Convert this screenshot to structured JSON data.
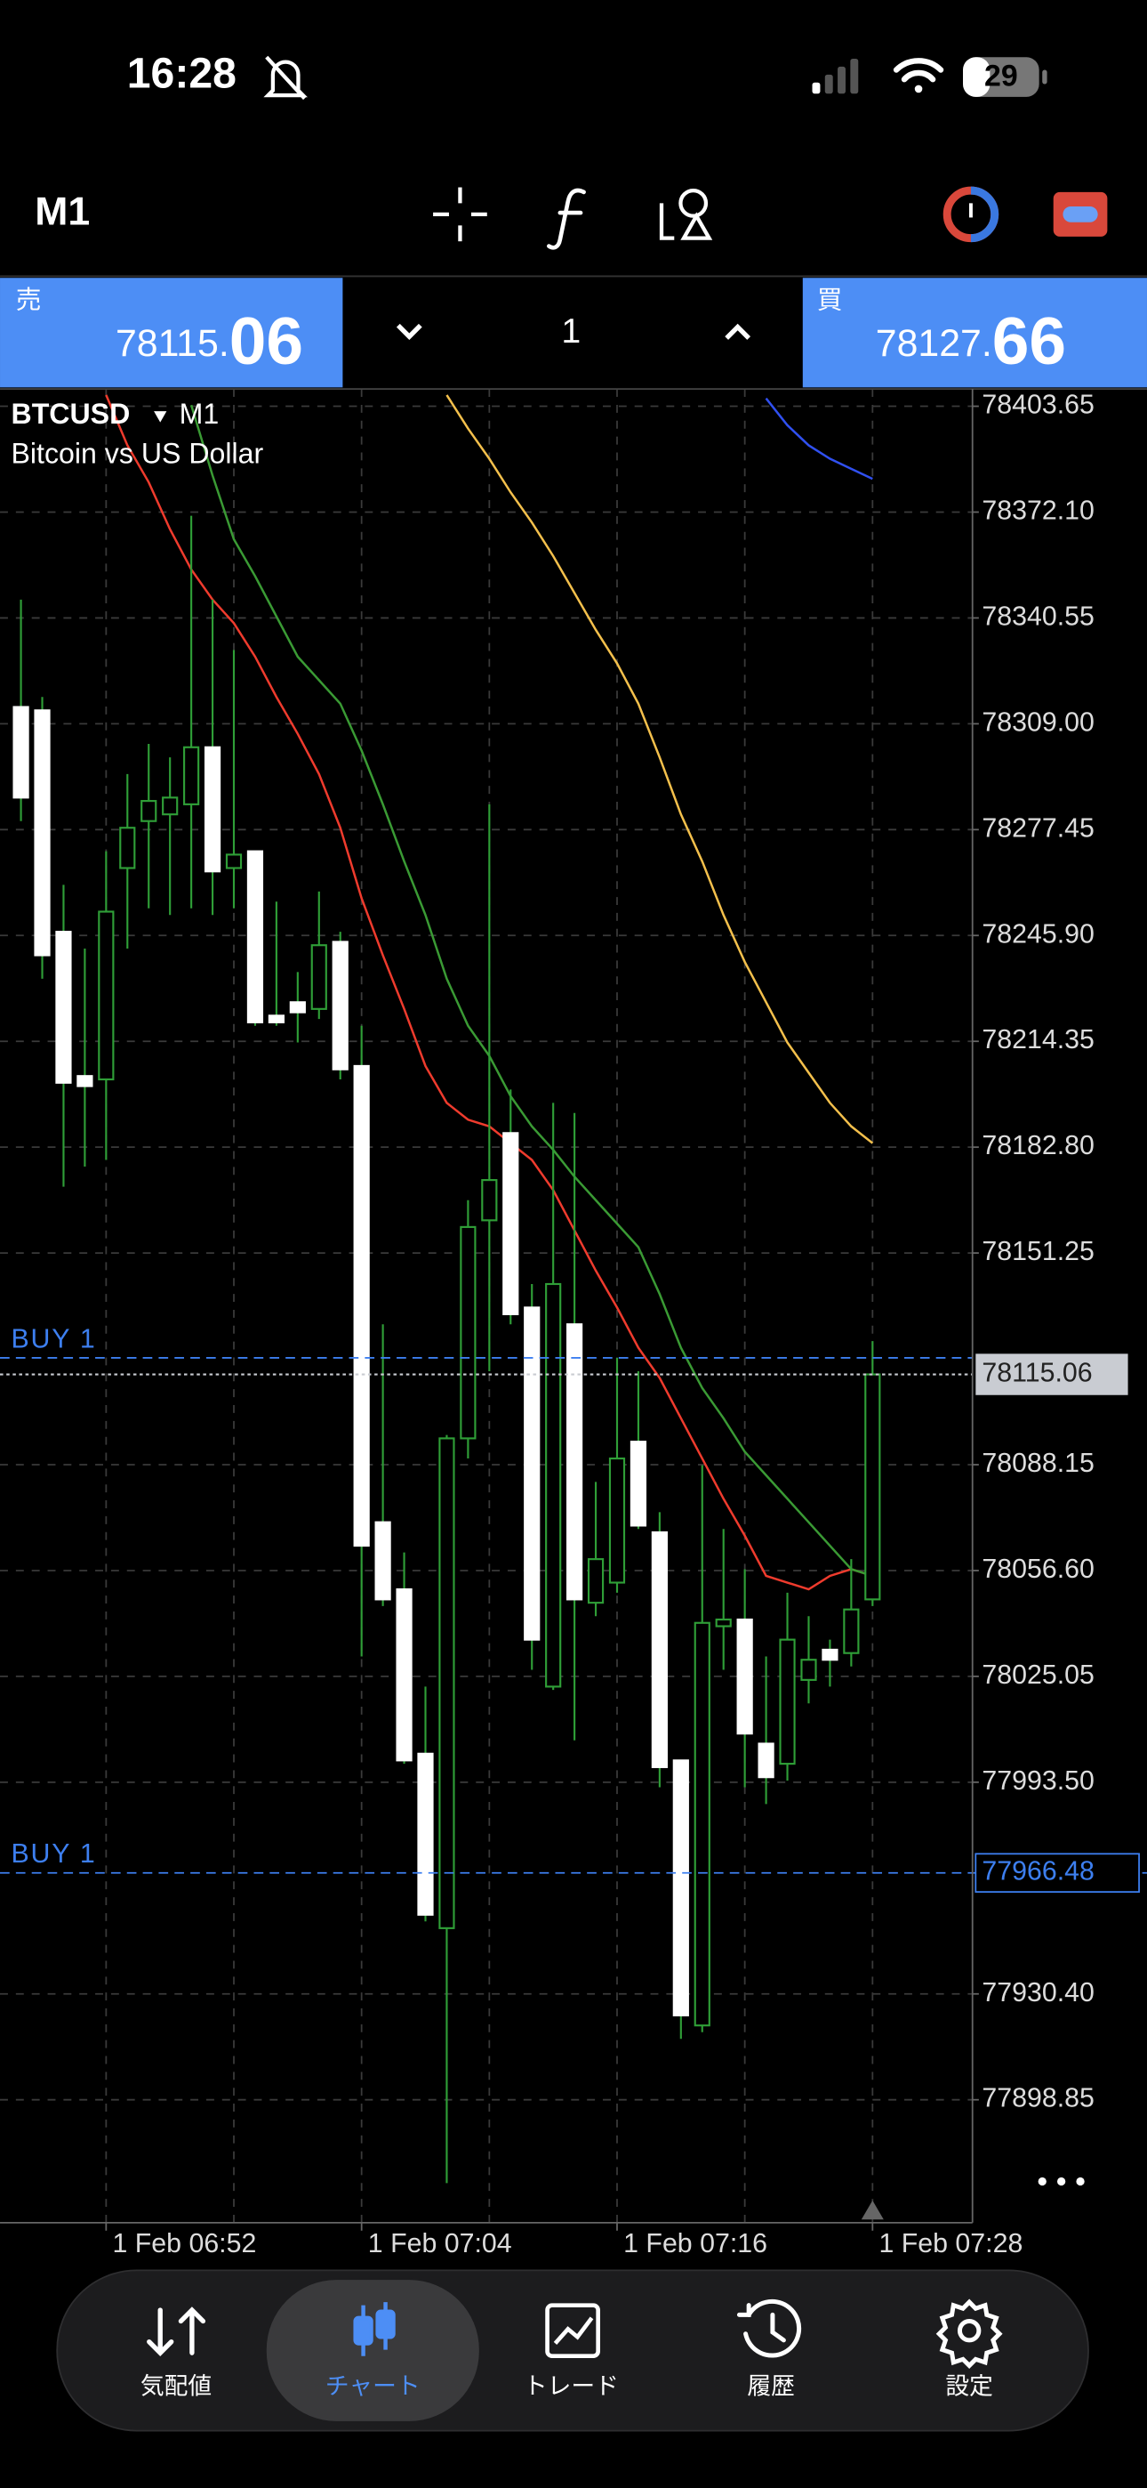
{
  "status_bar": {
    "time": "16:28",
    "battery": "29"
  },
  "toolbar": {
    "timeframe": "M1"
  },
  "trade_panel": {
    "sell_label": "売",
    "sell_price_main": "78115.",
    "sell_price_big": "06",
    "volume": "1",
    "buy_label": "買",
    "buy_price_main": "78127.",
    "buy_price_big": "66"
  },
  "chart_data": {
    "type": "candlestick",
    "symbol": "BTCUSD",
    "timeframe": "M1",
    "subtitle": "Bitcoin vs US Dollar",
    "x": [
      "1 Feb 06:48",
      "1 Feb 06:49",
      "1 Feb 06:50",
      "1 Feb 06:51",
      "1 Feb 06:52",
      "1 Feb 06:53",
      "1 Feb 06:54",
      "1 Feb 06:55",
      "1 Feb 06:56",
      "1 Feb 06:57",
      "1 Feb 06:58",
      "1 Feb 06:59",
      "1 Feb 07:00",
      "1 Feb 07:01",
      "1 Feb 07:02",
      "1 Feb 07:03",
      "1 Feb 07:04",
      "1 Feb 07:05",
      "1 Feb 07:06",
      "1 Feb 07:07",
      "1 Feb 07:08",
      "1 Feb 07:09",
      "1 Feb 07:10",
      "1 Feb 07:11",
      "1 Feb 07:12",
      "1 Feb 07:13",
      "1 Feb 07:14",
      "1 Feb 07:15",
      "1 Feb 07:16",
      "1 Feb 07:17",
      "1 Feb 07:18",
      "1 Feb 07:19",
      "1 Feb 07:20",
      "1 Feb 07:21",
      "1 Feb 07:22",
      "1 Feb 07:23",
      "1 Feb 07:24",
      "1 Feb 07:25",
      "1 Feb 07:26",
      "1 Feb 07:27",
      "1 Feb 07:28"
    ],
    "open": [
      78314,
      78313,
      78247,
      78204,
      78203,
      78266,
      78280,
      78282,
      78285,
      78302,
      78266,
      78271,
      78222,
      78226,
      78224,
      78244,
      78207,
      78071,
      78051,
      78002,
      77950,
      78096,
      78161,
      78187,
      78135,
      78022,
      78130,
      78047,
      78053,
      78095,
      78068,
      78000,
      77921,
      78040,
      78042,
      78005,
      77999,
      78024,
      78033,
      78032,
      78048
    ],
    "high": [
      78346,
      78317,
      78261,
      78242,
      78271,
      78294,
      78303,
      78299,
      78371,
      78346,
      78331,
      78271,
      78256,
      78235,
      78259,
      78247,
      78219,
      78130,
      78062,
      78022,
      78097,
      78167,
      78285,
      78200,
      78142,
      78196,
      78193,
      78083,
      78120,
      78116,
      78074,
      78000,
      78088,
      78069,
      78057,
      78031,
      78050,
      78043,
      78036,
      78060,
      78125
    ],
    "low": [
      78280,
      78233,
      78171,
      78177,
      78179,
      78242,
      78254,
      78252,
      78254,
      78252,
      78254,
      78219,
      78219,
      78214,
      78221,
      78203,
      78031,
      78046,
      77999,
      77952,
      77874,
      78090,
      78116,
      78130,
      78027,
      78021,
      78006,
      78043,
      78050,
      78069,
      77992,
      77917,
      77919,
      78027,
      77992,
      77987,
      77994,
      78017,
      78022,
      78028,
      78046
    ],
    "close": [
      78287,
      78240,
      78202,
      78201,
      78253,
      78278,
      78286,
      78287,
      78302,
      78265,
      78270,
      78220,
      78220,
      78223,
      78243,
      78206,
      78064,
      78048,
      78000,
      77954,
      78096,
      78159,
      78173,
      78133,
      78036,
      78142,
      78048,
      78060,
      78090,
      78070,
      77998,
      77924,
      78041,
      78042,
      78008,
      77995,
      78036,
      78030,
      78030,
      78045,
      78115.06
    ],
    "up_color": "#2f9e37",
    "down_color": "#ffffff",
    "indicators": [
      {
        "color": "#ef3b2d",
        "values": [
          null,
          null,
          null,
          null,
          78407,
          78392,
          78381,
          78367,
          78355,
          78346,
          78339,
          78329,
          78317,
          78306,
          78294,
          78278,
          78257,
          78240,
          78224,
          78207,
          78196,
          78191,
          78189,
          78184,
          78179,
          78170,
          78158,
          78146,
          78135,
          78123,
          78114,
          78102,
          78090,
          78078,
          78067,
          78055,
          78053,
          78051,
          78055,
          78057,
          78055
        ]
      },
      {
        "color": "#3a9a34",
        "values": [
          null,
          null,
          null,
          null,
          null,
          null,
          null,
          null,
          78404,
          78383,
          78364,
          78353,
          78341,
          78329,
          78322,
          78315,
          78301,
          78285,
          78268,
          78252,
          78233,
          78219,
          78210,
          78198,
          78189,
          78182,
          78174,
          78167,
          78160,
          78153,
          78139,
          78123,
          78111,
          78102,
          78092,
          78085,
          78078,
          78071,
          78064,
          78057,
          78055
        ]
      },
      {
        "color": "#f4c04c",
        "values": [
          null,
          null,
          null,
          null,
          null,
          null,
          null,
          null,
          null,
          null,
          null,
          null,
          null,
          null,
          null,
          null,
          null,
          null,
          null,
          null,
          78407,
          78397,
          78388,
          78378,
          78369,
          78359,
          78348,
          78337,
          78327,
          78315,
          78299,
          78282,
          78268,
          78252,
          78238,
          78226,
          78214,
          78205,
          78196,
          78189,
          78184
        ]
      },
      {
        "color": "#3050f0",
        "values": [
          null,
          null,
          null,
          null,
          null,
          null,
          null,
          null,
          null,
          null,
          null,
          null,
          null,
          null,
          null,
          null,
          null,
          null,
          null,
          null,
          null,
          null,
          null,
          null,
          null,
          null,
          null,
          null,
          null,
          null,
          null,
          null,
          null,
          null,
          null,
          78406,
          78398,
          78392,
          78388,
          78385,
          78382
        ]
      }
    ],
    "orders": [
      {
        "label": "BUY 1",
        "value": 78120,
        "show_price": false,
        "color": "#3d7ff0"
      },
      {
        "label": "BUY 1",
        "value": 77966.48,
        "show_price": true,
        "color": "#3d7ff0"
      }
    ],
    "bid_line": {
      "value": 78115.06,
      "color": "#c9ccd2"
    },
    "ylim": [
      77862.2,
      78408.8
    ],
    "yticks": [
      78403.65,
      {
        "value": 78372.1,
        "label": "78372.10"
      },
      78340.55,
      {
        "value": 78309,
        "label": "78309.00"
      },
      78277.45,
      {
        "value": 78245.9,
        "label": "78245.90"
      },
      78214.35,
      {
        "value": 78182.8,
        "label": "78182.80"
      },
      78151.25,
      78088.15,
      {
        "value": 78056.6,
        "label": "78056.60"
      },
      78025.05,
      {
        "value": 77993.5,
        "label": "77993.50"
      },
      {
        "value": 77930.4,
        "label": "77930.40"
      },
      77898.85
    ],
    "xticks": [
      "1 Feb 06:52",
      "1 Feb 07:04",
      "1 Feb 07:16",
      "1 Feb 07:28"
    ],
    "grid": true
  },
  "bottom_nav": {
    "items": [
      "気配値",
      "チャート",
      "トレード",
      "履歴",
      "設定"
    ],
    "active": 1
  }
}
